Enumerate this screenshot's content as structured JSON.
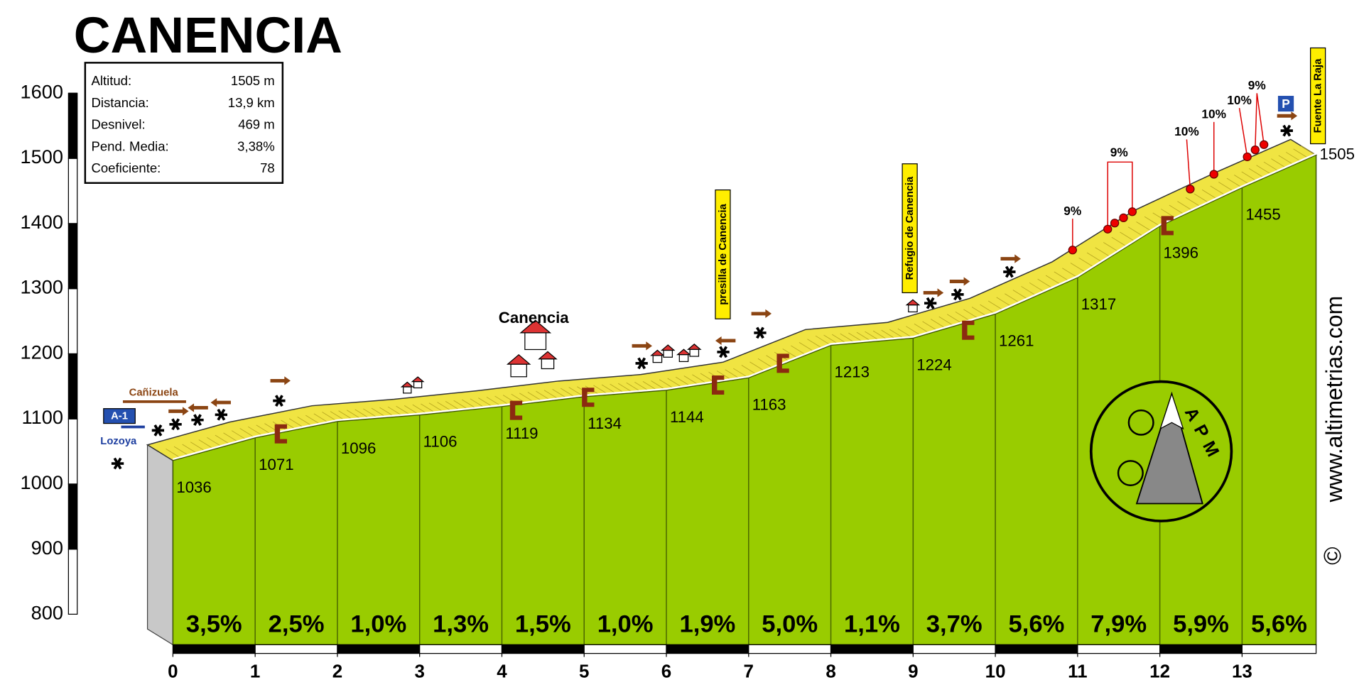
{
  "title": "CANENCIA",
  "stats": [
    {
      "label": "Altitud:",
      "value": "1505 m"
    },
    {
      "label": "Distancia:",
      "value": "13,9 km"
    },
    {
      "label": "Desnivel:",
      "value": "469 m"
    },
    {
      "label": "Pend. Media:",
      "value": "3,38%"
    },
    {
      "label": "Coeficiente:",
      "value": "78"
    }
  ],
  "chart_data": {
    "type": "climb-profile",
    "x": [
      0,
      1,
      2,
      3,
      4,
      5,
      6,
      7,
      8,
      9,
      10,
      11,
      12,
      13,
      13.9
    ],
    "values": [
      1036,
      1071,
      1096,
      1106,
      1119,
      1134,
      1144,
      1163,
      1213,
      1224,
      1261,
      1317,
      1396,
      1455,
      1505
    ],
    "xlim": [
      0,
      13.9
    ],
    "xticks": [
      0,
      1,
      2,
      3,
      4,
      5,
      6,
      7,
      8,
      9,
      10,
      11,
      12,
      13
    ],
    "ylim": [
      800,
      1600
    ],
    "yticks": [
      800,
      900,
      1000,
      1100,
      1200,
      1300,
      1400,
      1500,
      1600
    ],
    "gradients": {
      "values": [
        3.5,
        2.5,
        1.0,
        1.3,
        1.5,
        1.0,
        1.9,
        5.0,
        1.1,
        3.7,
        5.6,
        7.9,
        5.9,
        5.6
      ],
      "value_labels": [
        "3,5%",
        "2,5%",
        "1,0%",
        "1,3%",
        "1,5%",
        "1,0%",
        "1,9%",
        "5,0%",
        "1,1%",
        "3,7%",
        "5,6%",
        "7,9%",
        "5,9%",
        "5,6%"
      ]
    },
    "color": "#99cc00",
    "surface_color": "#f0e442"
  },
  "labels": {
    "canizuela": "Cañizuela",
    "a1": "A-1",
    "lozoya": "Lozoya",
    "canencia": "Canencia",
    "presilla": "presilla de Canencia",
    "refugio": "Refugio de Canencia",
    "fuente": "Fuente La Raja",
    "parking": "P"
  },
  "annotations": [
    "9%",
    "9%",
    "10%",
    "10%",
    "10%",
    "9%"
  ],
  "logo": "APM",
  "website": "www.altimetrias.com",
  "copyright": "©"
}
